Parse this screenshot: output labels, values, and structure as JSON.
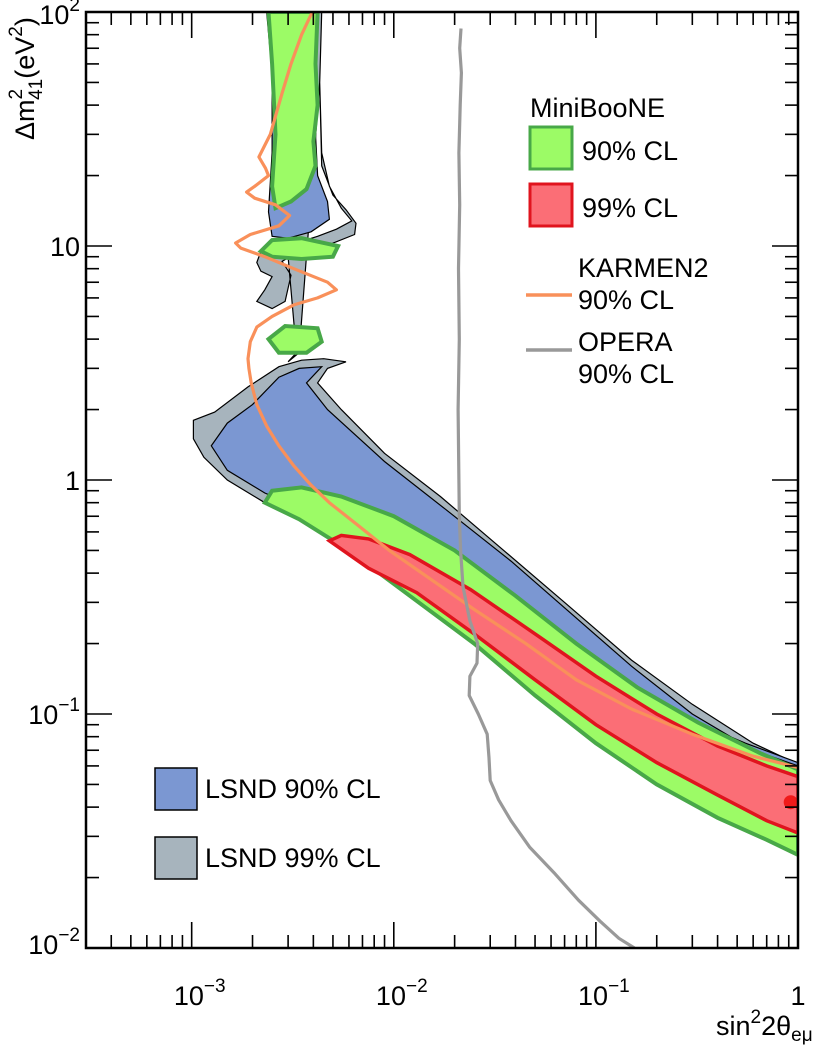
{
  "chart_data": {
    "type": "contour",
    "xlabel_base": "sin",
    "xlabel_sup": "2",
    "xlabel_rest": "2θ",
    "xlabel_sub": "eμ",
    "ylabel_delta": "Δm",
    "ylabel_sup": "2",
    "ylabel_sub": "41",
    "ylabel_unit": "(eV",
    "ylabel_unit_sup": "2",
    "ylabel_close": ")",
    "x_scale": "log",
    "y_scale": "log",
    "xlim": [
      0.0003,
      1
    ],
    "ylim": [
      0.01,
      100
    ],
    "x_ticks": [
      {
        "value": 0.001,
        "base": "10",
        "exp": "−3"
      },
      {
        "value": 0.01,
        "base": "10",
        "exp": "−2"
      },
      {
        "value": 0.1,
        "base": "10",
        "exp": "−1"
      },
      {
        "value": 1,
        "base": "1",
        "exp": ""
      }
    ],
    "y_ticks": [
      {
        "value": 0.01,
        "base": "10",
        "exp": "−2"
      },
      {
        "value": 0.1,
        "base": "10",
        "exp": "−1"
      },
      {
        "value": 1,
        "base": "1",
        "exp": ""
      },
      {
        "value": 10,
        "base": "10",
        "exp": ""
      },
      {
        "value": 100,
        "base": "10",
        "exp": "2"
      }
    ],
    "legend": {
      "group_title": "MiniBooNE",
      "entries": [
        {
          "label": "90% CL",
          "color": "#9cfb66",
          "edge": "#48a848",
          "kind": "box"
        },
        {
          "label": "99% CL",
          "color": "#fb6e76",
          "edge": "#e0141e",
          "kind": "box"
        },
        {
          "label_line1": "KARMEN2",
          "label_line2": "90% CL",
          "color": "#f9905a",
          "kind": "line"
        },
        {
          "label_line1": "OPERA",
          "label_line2": "90% CL",
          "color": "#999999",
          "kind": "line"
        }
      ],
      "lower_entries": [
        {
          "label": "LSND 90% CL",
          "color": "#7b97d2",
          "kind": "box"
        },
        {
          "label": "LSND 99% CL",
          "color": "#a7b4bd",
          "kind": "box"
        }
      ]
    },
    "colors": {
      "lsnd90": "#7b97d2",
      "lsnd99": "#a7b4bd",
      "mb90": "#9cfb66",
      "mb90_edge": "#48a848",
      "mb99": "#fb6e76",
      "mb99_edge": "#e0141e",
      "karmen": "#f9905a",
      "opera": "#999999"
    },
    "best_fit": {
      "x": 0.92,
      "y": 0.042
    },
    "opera_curve": [
      [
        0.0215,
        85
      ],
      [
        0.0212,
        70
      ],
      [
        0.0216,
        55
      ],
      [
        0.0213,
        40
      ],
      [
        0.021,
        25
      ],
      [
        0.0212,
        15
      ],
      [
        0.0209,
        8
      ],
      [
        0.0211,
        4
      ],
      [
        0.0208,
        2
      ],
      [
        0.021,
        1
      ],
      [
        0.0211,
        0.7
      ],
      [
        0.0214,
        0.5
      ],
      [
        0.022,
        0.35
      ],
      [
        0.0238,
        0.25
      ],
      [
        0.026,
        0.2
      ],
      [
        0.0258,
        0.165
      ],
      [
        0.0238,
        0.145
      ],
      [
        0.0236,
        0.12
      ],
      [
        0.0262,
        0.1
      ],
      [
        0.029,
        0.082
      ],
      [
        0.0296,
        0.065
      ],
      [
        0.03,
        0.052
      ],
      [
        0.033,
        0.043
      ],
      [
        0.038,
        0.035
      ],
      [
        0.047,
        0.027
      ],
      [
        0.062,
        0.021
      ],
      [
        0.082,
        0.016
      ],
      [
        0.105,
        0.013
      ],
      [
        0.13,
        0.011
      ],
      [
        0.155,
        0.01
      ]
    ],
    "karmen_curve": [
      [
        0.00395,
        100
      ],
      [
        0.0035,
        80
      ],
      [
        0.0031,
        60
      ],
      [
        0.0028,
        45
      ],
      [
        0.00245,
        30
      ],
      [
        0.00215,
        24
      ],
      [
        0.00232,
        21.5
      ],
      [
        0.0024,
        20
      ],
      [
        0.00205,
        18
      ],
      [
        0.00187,
        17
      ],
      [
        0.00205,
        16
      ],
      [
        0.0026,
        15
      ],
      [
        0.00305,
        13.5
      ],
      [
        0.0027,
        12.2
      ],
      [
        0.00195,
        11.2
      ],
      [
        0.00165,
        10.3
      ],
      [
        0.00175,
        9.8
      ],
      [
        0.0023,
        9
      ],
      [
        0.0032,
        8
      ],
      [
        0.0047,
        7
      ],
      [
        0.0052,
        6.5
      ],
      [
        0.0042,
        6
      ],
      [
        0.0032,
        5.6
      ],
      [
        0.0025,
        5
      ],
      [
        0.0021,
        4.5
      ],
      [
        0.00195,
        3.9
      ],
      [
        0.0019,
        3.3
      ],
      [
        0.00192,
        3
      ],
      [
        0.00197,
        2.6
      ],
      [
        0.0021,
        2.1
      ],
      [
        0.00235,
        1.7
      ],
      [
        0.0027,
        1.4
      ],
      [
        0.0032,
        1.15
      ],
      [
        0.0039,
        0.95
      ],
      [
        0.0048,
        0.8
      ],
      [
        0.0065,
        0.65
      ],
      [
        0.0095,
        0.5
      ],
      [
        0.015,
        0.38
      ],
      [
        0.025,
        0.28
      ],
      [
        0.045,
        0.2
      ],
      [
        0.08,
        0.14
      ],
      [
        0.15,
        0.105
      ],
      [
        0.3,
        0.082
      ],
      [
        0.6,
        0.066
      ],
      [
        1,
        0.059
      ]
    ],
    "lsnd99_region": [
      [
        0.00235,
        100
      ],
      [
        0.0044,
        100
      ],
      [
        0.0043,
        50
      ],
      [
        0.0044,
        25
      ],
      [
        0.0048,
        18
      ],
      [
        0.0055,
        14.5
      ],
      [
        0.0062,
        12.8
      ],
      [
        0.0052,
        11.8
      ],
      [
        0.0042,
        11
      ],
      [
        0.0033,
        10.3
      ],
      [
        0.0026,
        9.8
      ],
      [
        0.0022,
        9.5
      ],
      [
        0.0021,
        8.5
      ],
      [
        0.0022,
        7.8
      ],
      [
        0.0025,
        7.4
      ],
      [
        0.0023,
        6.5
      ],
      [
        0.0021,
        5.8
      ],
      [
        0.0025,
        5.4
      ],
      [
        0.0029,
        5.8
      ],
      [
        0.0031,
        7.5
      ],
      [
        0.0028,
        8.6
      ],
      [
        0.0032,
        9.2
      ],
      [
        0.0046,
        10
      ],
      [
        0.0064,
        11.2
      ],
      [
        0.0065,
        12.5
      ],
      [
        0.0058,
        14.3
      ],
      [
        0.005,
        16.5
      ],
      [
        0.0044,
        22
      ],
      [
        0.0043,
        50
      ],
      [
        0.0034,
        3.5
      ],
      [
        0.003,
        3.2
      ],
      [
        0.0033,
        3.5
      ]
    ],
    "lsnd99_main": [
      [
        0.0058,
        3.2
      ],
      [
        0.0045,
        3.3
      ],
      [
        0.0035,
        3.25
      ],
      [
        0.0027,
        3.05
      ],
      [
        0.0019,
        2.5
      ],
      [
        0.0013,
        1.95
      ],
      [
        0.00102,
        1.8
      ],
      [
        0.00102,
        1.5
      ],
      [
        0.00115,
        1.25
      ],
      [
        0.0015,
        1
      ],
      [
        0.0023,
        0.8
      ],
      [
        0.0039,
        0.65
      ],
      [
        0.007,
        0.5
      ],
      [
        0.013,
        0.37
      ],
      [
        0.025,
        0.27
      ],
      [
        0.05,
        0.19
      ],
      [
        0.11,
        0.13
      ],
      [
        0.25,
        0.092
      ],
      [
        0.55,
        0.07
      ],
      [
        1,
        0.058
      ],
      [
        1,
        0.061
      ],
      [
        0.6,
        0.075
      ],
      [
        0.3,
        0.11
      ],
      [
        0.15,
        0.17
      ],
      [
        0.07,
        0.3
      ],
      [
        0.035,
        0.5
      ],
      [
        0.017,
        0.85
      ],
      [
        0.009,
        1.3
      ],
      [
        0.0055,
        2
      ],
      [
        0.0042,
        2.6
      ],
      [
        0.0047,
        3
      ],
      [
        0.0058,
        3.2
      ]
    ],
    "lsnd90_main": [
      [
        0.0044,
        3.05
      ],
      [
        0.0034,
        3
      ],
      [
        0.0027,
        2.75
      ],
      [
        0.002,
        2.1
      ],
      [
        0.0015,
        1.75
      ],
      [
        0.00125,
        1.4
      ],
      [
        0.0015,
        1.1
      ],
      [
        0.0023,
        0.88
      ],
      [
        0.004,
        0.72
      ],
      [
        0.007,
        0.57
      ],
      [
        0.013,
        0.42
      ],
      [
        0.025,
        0.3
      ],
      [
        0.05,
        0.21
      ],
      [
        0.11,
        0.145
      ],
      [
        0.25,
        0.1
      ],
      [
        0.55,
        0.075
      ],
      [
        1,
        0.062
      ],
      [
        1,
        0.06
      ],
      [
        0.6,
        0.07
      ],
      [
        0.3,
        0.1
      ],
      [
        0.15,
        0.16
      ],
      [
        0.075,
        0.27
      ],
      [
        0.038,
        0.45
      ],
      [
        0.018,
        0.75
      ],
      [
        0.009,
        1.2
      ],
      [
        0.0047,
        2
      ],
      [
        0.0037,
        2.6
      ],
      [
        0.0044,
        3.05
      ]
    ],
    "lsnd90_upper": [
      [
        0.0025,
        100
      ],
      [
        0.0042,
        100
      ],
      [
        0.0041,
        30
      ],
      [
        0.0042,
        20
      ],
      [
        0.0047,
        15.5
      ],
      [
        0.0048,
        13
      ],
      [
        0.0039,
        11.5
      ],
      [
        0.003,
        10.8
      ],
      [
        0.0025,
        11
      ],
      [
        0.0024,
        14
      ],
      [
        0.0025,
        25
      ]
    ],
    "mb90_upper": [
      [
        0.0024,
        100
      ],
      [
        0.0042,
        100
      ],
      [
        0.0041,
        60
      ],
      [
        0.0042,
        40
      ],
      [
        0.004,
        28
      ],
      [
        0.0041,
        22
      ],
      [
        0.0037,
        17.5
      ],
      [
        0.0031,
        15.5
      ],
      [
        0.0026,
        14.5
      ],
      [
        0.0025,
        18
      ],
      [
        0.0026,
        30
      ],
      [
        0.0025,
        60
      ]
    ],
    "mb90_blob1": [
      [
        0.0022,
        9.5
      ],
      [
        0.0025,
        10.6
      ],
      [
        0.0035,
        10.8
      ],
      [
        0.0053,
        10
      ],
      [
        0.005,
        9
      ],
      [
        0.0035,
        8.8
      ],
      [
        0.0025,
        9
      ]
    ],
    "mb90_blob2": [
      [
        0.0024,
        4
      ],
      [
        0.0029,
        4.55
      ],
      [
        0.0042,
        4.45
      ],
      [
        0.0044,
        3.9
      ],
      [
        0.0037,
        3.5
      ],
      [
        0.0027,
        3.5
      ]
    ],
    "mb90_main": [
      [
        0.0023,
        0.8
      ],
      [
        0.0025,
        0.9
      ],
      [
        0.0035,
        0.93
      ],
      [
        0.0055,
        0.85
      ],
      [
        0.01,
        0.7
      ],
      [
        0.02,
        0.5
      ],
      [
        0.04,
        0.32
      ],
      [
        0.08,
        0.2
      ],
      [
        0.16,
        0.13
      ],
      [
        0.32,
        0.092
      ],
      [
        0.65,
        0.068
      ],
      [
        1,
        0.058
      ],
      [
        1,
        0.025
      ],
      [
        0.7,
        0.029
      ],
      [
        0.4,
        0.036
      ],
      [
        0.2,
        0.05
      ],
      [
        0.1,
        0.075
      ],
      [
        0.05,
        0.12
      ],
      [
        0.025,
        0.2
      ],
      [
        0.012,
        0.32
      ],
      [
        0.006,
        0.5
      ],
      [
        0.0034,
        0.68
      ]
    ],
    "mb99_main": [
      [
        0.0048,
        0.55
      ],
      [
        0.0055,
        0.58
      ],
      [
        0.0075,
        0.56
      ],
      [
        0.012,
        0.48
      ],
      [
        0.024,
        0.34
      ],
      [
        0.05,
        0.22
      ],
      [
        0.1,
        0.145
      ],
      [
        0.2,
        0.1
      ],
      [
        0.4,
        0.073
      ],
      [
        0.7,
        0.06
      ],
      [
        1,
        0.054
      ],
      [
        1,
        0.031
      ],
      [
        0.7,
        0.035
      ],
      [
        0.4,
        0.045
      ],
      [
        0.2,
        0.062
      ],
      [
        0.1,
        0.09
      ],
      [
        0.05,
        0.14
      ],
      [
        0.025,
        0.22
      ],
      [
        0.013,
        0.33
      ],
      [
        0.0075,
        0.42
      ]
    ]
  }
}
